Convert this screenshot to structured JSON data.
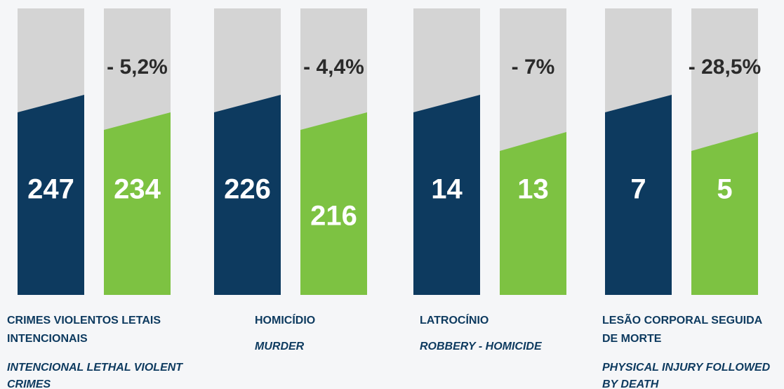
{
  "groups": [
    {
      "label_pt": [
        "CRIMES  VIOLENTOS  LETAIS",
        "INTENCIONAIS"
      ],
      "label_en": [
        "INTENCIONAL LETHAL VIOLENT",
        "CRIMES"
      ],
      "before": 247,
      "after": 234,
      "change": "- 5,2%"
    },
    {
      "label_pt": [
        "HOMICÍDIO"
      ],
      "label_en": [
        "MURDER"
      ],
      "before": 226,
      "after": 216,
      "change": "- 4,4%"
    },
    {
      "label_pt": [
        "LATROCÍNIO"
      ],
      "label_en": [
        "ROBBERY - HOMICIDE"
      ],
      "before": 14,
      "after": 13,
      "change": "- 7%"
    },
    {
      "label_pt": [
        "LESÃO CORPORAL SEGUIDA",
        "DE MORTE"
      ],
      "label_en": [
        "PHYSICAL  INJURY  FOLLOWED",
        "BY DEATH"
      ],
      "before": 7,
      "after": 5,
      "change": "- 28,5%"
    }
  ]
}
